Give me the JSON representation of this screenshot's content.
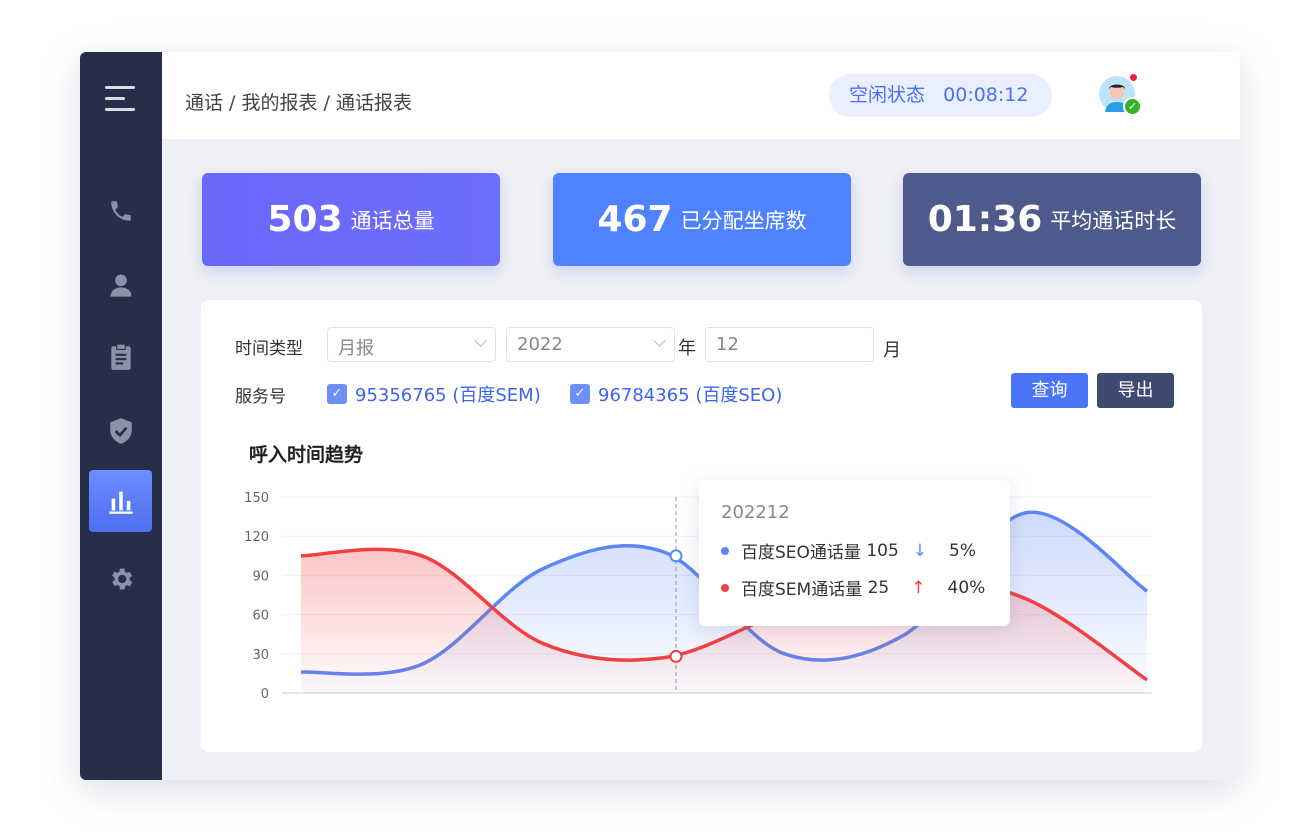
{
  "header": {
    "breadcrumb": "通话 / 我的报表 / 通话报表",
    "status_label": "空闲状态",
    "status_timer": "00:08:12"
  },
  "sidebar": {
    "items": [
      {
        "icon": "phone-icon"
      },
      {
        "icon": "user-icon"
      },
      {
        "icon": "clipboard-icon"
      },
      {
        "icon": "shield-check-icon"
      },
      {
        "icon": "bar-chart-icon",
        "active": true
      },
      {
        "icon": "gear-icon"
      }
    ]
  },
  "stats": [
    {
      "value": "503",
      "label": "通话总量",
      "color": "#6b6bff"
    },
    {
      "value": "467",
      "label": "已分配坐席数",
      "color": "#4f82ff"
    },
    {
      "value": "01:36",
      "label": "平均通话时长",
      "color": "#4e5a8c"
    }
  ],
  "filters": {
    "time_type_label": "时间类型",
    "time_type_value": "月报",
    "year_value": "2022",
    "year_suffix": "年",
    "month_value": "12",
    "month_suffix": "月",
    "service_label": "服务号",
    "services": [
      {
        "label": "95356765 (百度SEM)",
        "checked": true
      },
      {
        "label": "96784365 (百度SEO)",
        "checked": true
      }
    ],
    "query_button": "查询",
    "export_button": "导出"
  },
  "chart_data": {
    "type": "area",
    "title": "呼入时间趋势",
    "ylim": [
      0,
      150
    ],
    "yticks": [
      "0",
      "30",
      "60",
      "90",
      "120",
      "150"
    ],
    "grid": true,
    "series": [
      {
        "name": "百度SEO通话量",
        "color": "#5b86f7",
        "values": [
          16,
          22,
          95,
          108,
          30,
          45,
          138,
          78
        ]
      },
      {
        "name": "百度SEM通话量",
        "color": "#f24040",
        "values": [
          105,
          105,
          38,
          27,
          62,
          88,
          72,
          10
        ]
      }
    ]
  },
  "tooltip": {
    "date": "202212",
    "rows": [
      {
        "name": "百度SEO通话量",
        "value": "105",
        "trend": "down",
        "change": "5%"
      },
      {
        "name": "百度SEM通话量",
        "value": "25",
        "trend": "up",
        "change": "40%"
      }
    ]
  }
}
